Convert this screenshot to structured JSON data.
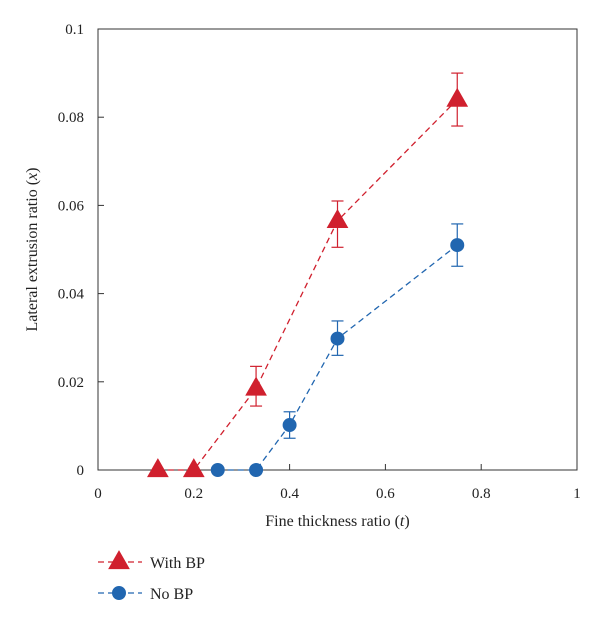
{
  "chart_data": {
    "type": "line",
    "title": "",
    "xlabel": {
      "text": "Fine thickness ratio",
      "symbol": "t"
    },
    "ylabel": {
      "text": "Lateral extrusion ratio",
      "symbol": "x"
    },
    "xlim": [
      0,
      1
    ],
    "ylim": [
      0,
      0.1
    ],
    "xticks": [
      "0",
      "0.2",
      "0.4",
      "0.6",
      "0.8",
      "1"
    ],
    "yticks": [
      "0",
      "0.02",
      "0.04",
      "0.06",
      "0.08",
      "0.1"
    ],
    "grid": false,
    "legend": {
      "position": "bottom-left-outside"
    },
    "series": [
      {
        "name": "With BP",
        "color": "#d0202e",
        "marker": "triangle",
        "linestyle": "dashed",
        "x": [
          0.125,
          0.2,
          0.33,
          0.5,
          0.75
        ],
        "y": [
          0,
          0,
          0.0185,
          0.0565,
          0.084
        ],
        "err_low": [
          0,
          0,
          0.004,
          0.006,
          0.006
        ],
        "err_high": [
          0,
          0,
          0.005,
          0.0045,
          0.006
        ]
      },
      {
        "name": "No BP",
        "color": "#2166b0",
        "marker": "circle",
        "linestyle": "dashed",
        "x": [
          0.25,
          0.33,
          0.4,
          0.5,
          0.75
        ],
        "y": [
          0,
          0,
          0.0102,
          0.0298,
          0.051
        ],
        "err_low": [
          0,
          0,
          0.003,
          0.0038,
          0.0048
        ],
        "err_high": [
          0,
          0,
          0.003,
          0.004,
          0.0048
        ]
      }
    ]
  }
}
